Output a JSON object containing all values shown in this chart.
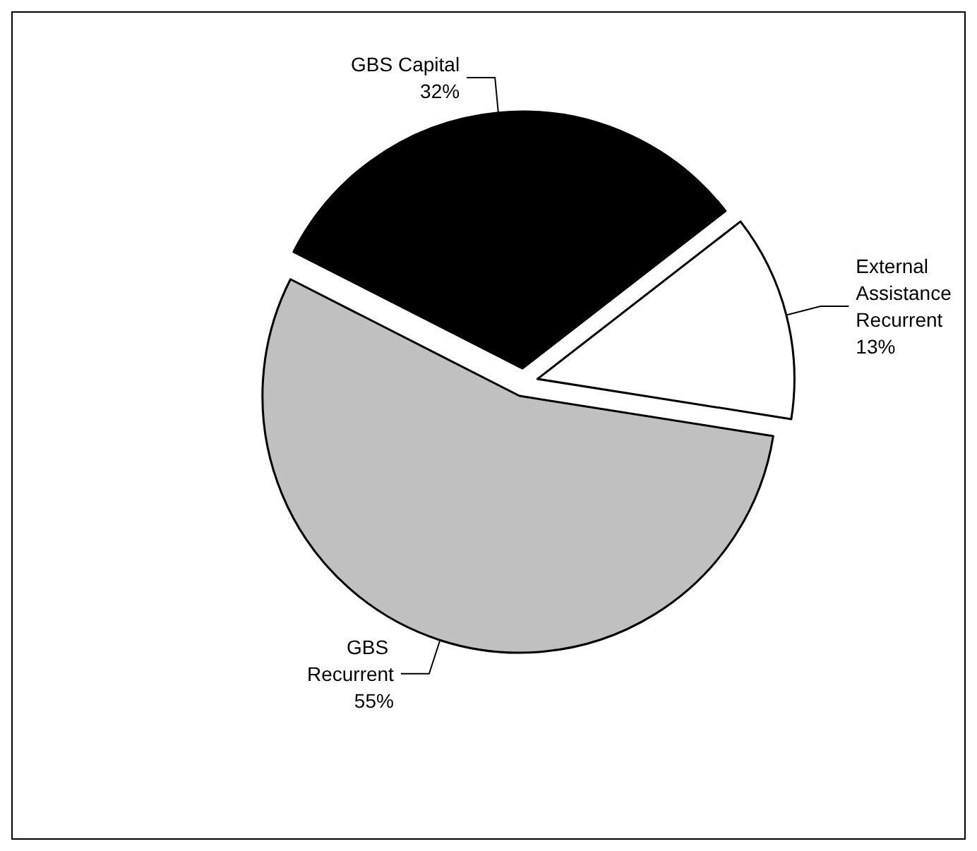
{
  "chart_data": {
    "type": "pie",
    "categories": [
      "GBS Capital",
      "External Assistance Recurrent",
      "GBS Recurrent"
    ],
    "values": [
      32,
      13,
      55
    ],
    "colors": [
      "#000000",
      "#ffffff",
      "#c0c0c0"
    ],
    "value_labels": [
      "32%",
      "13%",
      "55%"
    ],
    "legend": false
  }
}
